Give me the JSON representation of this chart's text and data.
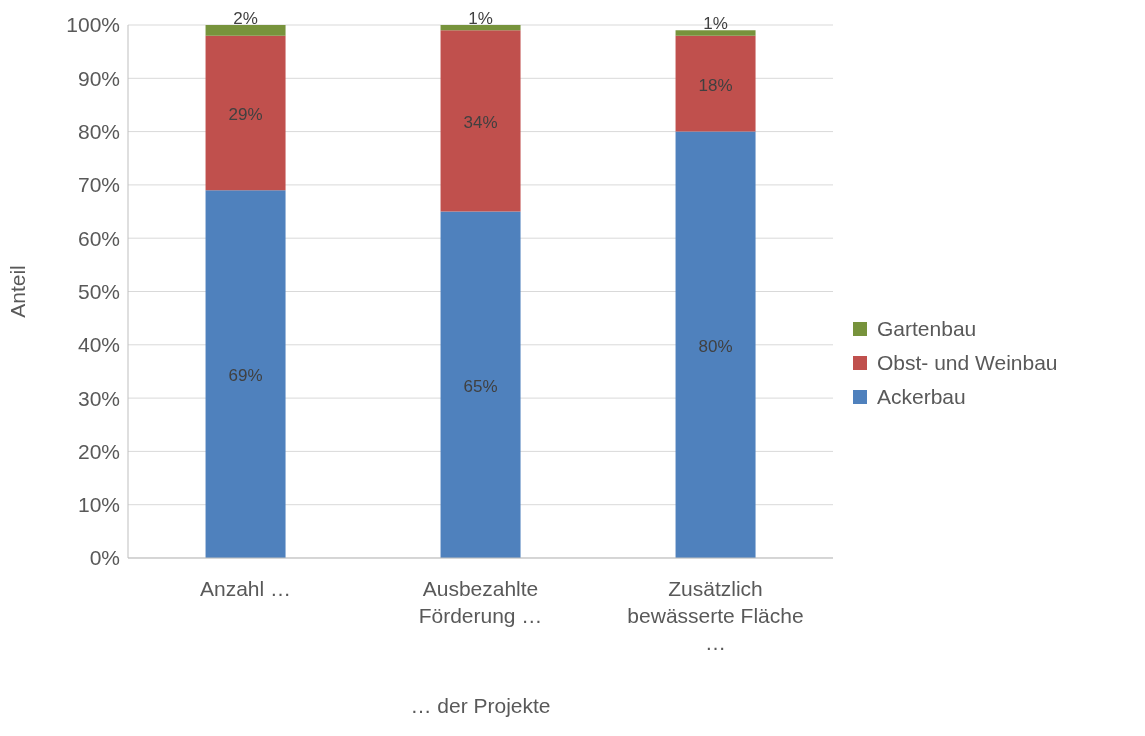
{
  "chart_data": {
    "type": "bar",
    "stacked": true,
    "xlabel": "… der Projekte",
    "ylabel": "Anteil",
    "categories": [
      "Anzahl …",
      "Ausbezahlte Förderung …",
      "Zusätzlich bewässerte Fläche …"
    ],
    "series": [
      {
        "name": "Ackerbau",
        "color": "#4f81bd",
        "values": [
          69,
          65,
          80
        ],
        "value_labels": [
          "69%",
          "65%",
          "80%"
        ]
      },
      {
        "name": "Obst- und Weinbau",
        "color": "#c0504d",
        "values": [
          29,
          34,
          18
        ],
        "value_labels": [
          "29%",
          "34%",
          "18%"
        ]
      },
      {
        "name": "Gartenbau",
        "color": "#77933c",
        "values": [
          2,
          1,
          1
        ],
        "value_labels": [
          "2%",
          "1%",
          "1%"
        ]
      }
    ],
    "ylim": [
      0,
      100
    ],
    "yticks": [
      {
        "value": 0,
        "label": "0%"
      },
      {
        "value": 10,
        "label": "10%"
      },
      {
        "value": 20,
        "label": "20%"
      },
      {
        "value": 30,
        "label": "30%"
      },
      {
        "value": 40,
        "label": "40%"
      },
      {
        "value": 50,
        "label": "50%"
      },
      {
        "value": 60,
        "label": "60%"
      },
      {
        "value": 70,
        "label": "70%"
      },
      {
        "value": 80,
        "label": "80%"
      },
      {
        "value": 90,
        "label": "90%"
      },
      {
        "value": 100,
        "label": "100%"
      }
    ],
    "grid": "y",
    "legend": "right"
  }
}
